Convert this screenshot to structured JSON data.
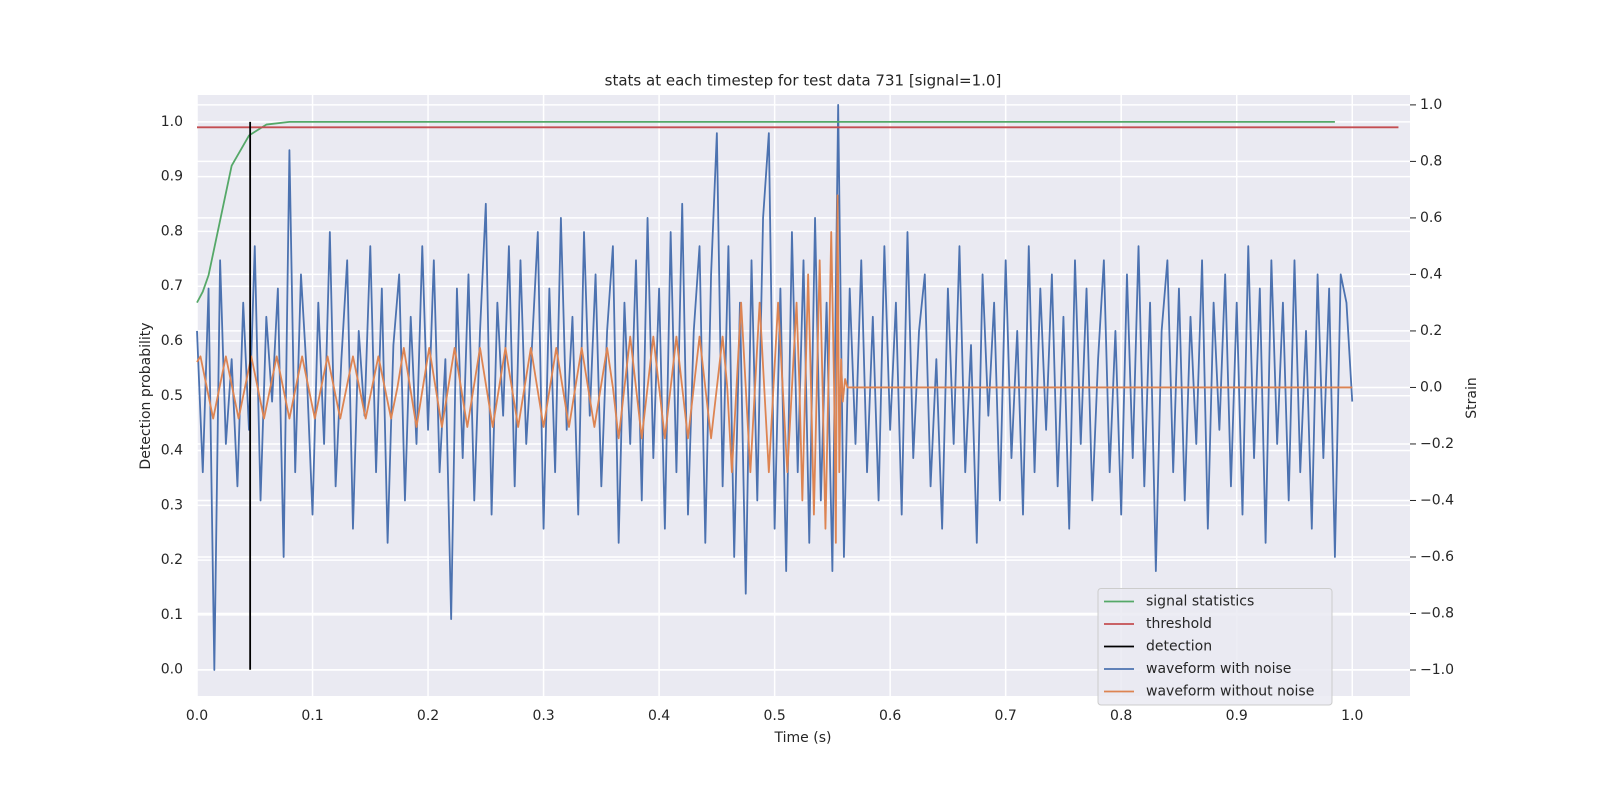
{
  "chart_data": {
    "type": "line",
    "title": "stats at each timestep for test data 731 [signal=1.0]",
    "xlabel": "Time (s)",
    "ylabel": "Detection probability",
    "y2label": "Strain",
    "xlim": [
      0,
      1.05
    ],
    "ylim": [
      -0.048,
      1.049
    ],
    "y2lim": [
      -1.092,
      1.035
    ],
    "xticks": [
      {
        "value": 0,
        "label": "0.0"
      },
      0.1,
      0.2,
      0.3,
      0.4,
      0.5,
      0.6,
      0.7,
      0.8,
      0.9,
      {
        "value": 1,
        "label": "1.0"
      }
    ],
    "yticks": [
      {
        "value": 0,
        "label": "0.0"
      },
      0.1,
      0.2,
      0.3,
      0.4,
      0.5,
      0.6,
      0.7,
      0.8,
      0.9,
      {
        "value": 1,
        "label": "1.0"
      }
    ],
    "y2ticks": [
      {
        "value": -1,
        "label": "−1.0"
      },
      {
        "value": -0.8,
        "label": "−0.8"
      },
      {
        "value": -0.6,
        "label": "−0.6"
      },
      {
        "value": -0.4,
        "label": "−0.4"
      },
      {
        "value": -0.2,
        "label": "−0.2"
      },
      {
        "value": 0,
        "label": "0.0"
      },
      0.2,
      0.4,
      0.6,
      0.8,
      {
        "value": 1,
        "label": "1.0"
      }
    ],
    "grid": true,
    "legend": "lower right",
    "series": [
      {
        "name": "signal statistics",
        "color": "#55a868",
        "x": [
          0,
          0.005,
          0.01,
          0.02,
          0.03,
          0.045,
          0.06,
          0.08,
          0.2,
          0.4,
          0.6,
          0.8,
          0.985
        ],
        "values": [
          0.67,
          0.69,
          0.72,
          0.82,
          0.92,
          0.975,
          0.995,
          1.0,
          1.0,
          1.0,
          1.0,
          1.0,
          1.0
        ]
      },
      {
        "name": "threshold",
        "color": "#c44e52",
        "x": [
          0,
          1.04
        ],
        "values": [
          0.99,
          0.99
        ]
      },
      {
        "name": "detection",
        "color": "#000000",
        "x": [
          0.046,
          0.046
        ],
        "values": [
          0,
          1
        ]
      },
      {
        "name": "waveform with noise",
        "color": "#4c72b0",
        "axis": "y2",
        "x": [
          0,
          0.005,
          0.01,
          0.015,
          0.02,
          0.025,
          0.03,
          0.035,
          0.04,
          0.045,
          0.05,
          0.055,
          0.06,
          0.065,
          0.07,
          0.075,
          0.08,
          0.085,
          0.09,
          0.095,
          0.1,
          0.105,
          0.11,
          0.115,
          0.12,
          0.125,
          0.13,
          0.135,
          0.14,
          0.145,
          0.15,
          0.155,
          0.16,
          0.165,
          0.17,
          0.175,
          0.18,
          0.185,
          0.19,
          0.195,
          0.2,
          0.205,
          0.21,
          0.215,
          0.22,
          0.225,
          0.23,
          0.235,
          0.24,
          0.245,
          0.25,
          0.255,
          0.26,
          0.265,
          0.27,
          0.275,
          0.28,
          0.285,
          0.29,
          0.295,
          0.3,
          0.305,
          0.31,
          0.315,
          0.32,
          0.325,
          0.33,
          0.335,
          0.34,
          0.345,
          0.35,
          0.355,
          0.36,
          0.365,
          0.37,
          0.375,
          0.38,
          0.385,
          0.39,
          0.395,
          0.4,
          0.405,
          0.41,
          0.415,
          0.42,
          0.425,
          0.43,
          0.435,
          0.44,
          0.445,
          0.45,
          0.455,
          0.46,
          0.465,
          0.47,
          0.475,
          0.48,
          0.485,
          0.49,
          0.495,
          0.5,
          0.505,
          0.51,
          0.515,
          0.52,
          0.525,
          0.53,
          0.535,
          0.54,
          0.545,
          0.55,
          0.555,
          0.56,
          0.565,
          0.57,
          0.575,
          0.58,
          0.585,
          0.59,
          0.595,
          0.6,
          0.605,
          0.61,
          0.615,
          0.62,
          0.625,
          0.63,
          0.635,
          0.64,
          0.645,
          0.65,
          0.655,
          0.66,
          0.665,
          0.67,
          0.675,
          0.68,
          0.685,
          0.69,
          0.695,
          0.7,
          0.705,
          0.71,
          0.715,
          0.72,
          0.725,
          0.73,
          0.735,
          0.74,
          0.745,
          0.75,
          0.755,
          0.76,
          0.765,
          0.77,
          0.775,
          0.78,
          0.785,
          0.79,
          0.795,
          0.8,
          0.805,
          0.81,
          0.815,
          0.82,
          0.825,
          0.83,
          0.835,
          0.84,
          0.845,
          0.85,
          0.855,
          0.86,
          0.865,
          0.87,
          0.875,
          0.88,
          0.885,
          0.89,
          0.895,
          0.9,
          0.905,
          0.91,
          0.915,
          0.92,
          0.925,
          0.93,
          0.935,
          0.94,
          0.945,
          0.95,
          0.955,
          0.96,
          0.965,
          0.97,
          0.975,
          0.98,
          0.985,
          0.99,
          0.995,
          1.0
        ],
        "values": [
          0.2,
          -0.3,
          0.35,
          -1.0,
          0.45,
          -0.2,
          0.1,
          -0.35,
          0.3,
          -0.15,
          0.5,
          -0.4,
          0.25,
          -0.05,
          0.35,
          -0.6,
          0.84,
          -0.3,
          0.4,
          0.05,
          -0.45,
          0.3,
          -0.2,
          0.55,
          -0.35,
          0.1,
          0.45,
          -0.5,
          0.2,
          -0.1,
          0.5,
          -0.3,
          0.35,
          -0.55,
          0.15,
          0.4,
          -0.4,
          0.25,
          -0.2,
          0.5,
          -0.15,
          0.45,
          -0.3,
          0.1,
          -0.82,
          0.35,
          -0.25,
          0.4,
          -0.4,
          0.2,
          0.65,
          -0.45,
          0.3,
          -0.1,
          0.5,
          -0.35,
          0.45,
          -0.2,
          0.15,
          0.55,
          -0.5,
          0.35,
          -0.3,
          0.6,
          -0.15,
          0.25,
          -0.45,
          0.55,
          -0.1,
          0.4,
          -0.35,
          0.2,
          0.5,
          -0.55,
          0.3,
          -0.2,
          0.45,
          -0.4,
          0.6,
          -0.25,
          0.35,
          -0.5,
          0.55,
          -0.3,
          0.65,
          -0.45,
          0.2,
          0.5,
          -0.55,
          0.4,
          0.9,
          -0.35,
          0.5,
          -0.6,
          0.3,
          -0.73,
          0.45,
          -0.4,
          0.6,
          0.9,
          -0.5,
          0.35,
          -0.65,
          0.55,
          -0.3,
          0.45,
          -0.55,
          0.6,
          -0.4,
          0.3,
          -0.65,
          1.0,
          -0.6,
          0.35,
          -0.2,
          0.45,
          -0.3,
          0.25,
          -0.4,
          0.5,
          -0.15,
          0.3,
          -0.45,
          0.55,
          -0.25,
          0.2,
          0.4,
          -0.35,
          0.1,
          -0.5,
          0.35,
          -0.2,
          0.5,
          -0.3,
          0.15,
          -0.55,
          0.4,
          -0.1,
          0.3,
          -0.4,
          0.45,
          -0.25,
          0.2,
          -0.45,
          0.5,
          -0.3,
          0.35,
          -0.15,
          0.4,
          -0.35,
          0.25,
          -0.5,
          0.45,
          -0.2,
          0.35,
          -0.4,
          0.1,
          0.45,
          -0.3,
          0.2,
          -0.45,
          0.4,
          -0.25,
          0.5,
          -0.35,
          0.3,
          -0.65,
          0.2,
          0.45,
          -0.3,
          0.35,
          -0.4,
          0.25,
          -0.2,
          0.45,
          -0.5,
          0.3,
          -0.15,
          0.4,
          -0.35,
          0.3,
          -0.45,
          0.5,
          -0.25,
          0.35,
          -0.55,
          0.45,
          -0.2,
          0.3,
          -0.4,
          0.45,
          -0.3,
          0.2,
          -0.5,
          0.4,
          -0.25,
          0.35,
          -0.6,
          0.4,
          0.3,
          -0.05
        ]
      },
      {
        "name": "waveform without noise",
        "color": "#dd8452",
        "axis": "y2",
        "x": [
          0,
          0.003,
          0.0085,
          0.014,
          0.0195,
          0.025,
          0.0305,
          0.036,
          0.0415,
          0.047,
          0.0525,
          0.058,
          0.0635,
          0.069,
          0.0745,
          0.08,
          0.0855,
          0.091,
          0.0965,
          0.102,
          0.1075,
          0.113,
          0.1185,
          0.124,
          0.1295,
          0.135,
          0.1405,
          0.146,
          0.1515,
          0.157,
          0.1625,
          0.168,
          0.1735,
          0.179,
          0.1845,
          0.19,
          0.1955,
          0.201,
          0.2065,
          0.212,
          0.2175,
          0.223,
          0.2285,
          0.234,
          0.2395,
          0.245,
          0.2505,
          0.256,
          0.2615,
          0.267,
          0.2725,
          0.278,
          0.2835,
          0.289,
          0.2945,
          0.3,
          0.3055,
          0.311,
          0.3165,
          0.322,
          0.3275,
          0.333,
          0.3385,
          0.344,
          0.3495,
          0.355,
          0.36,
          0.365,
          0.37,
          0.375,
          0.38,
          0.385,
          0.39,
          0.395,
          0.4,
          0.405,
          0.41,
          0.415,
          0.42,
          0.425,
          0.43,
          0.435,
          0.44,
          0.445,
          0.45,
          0.455,
          0.459,
          0.463,
          0.467,
          0.471,
          0.475,
          0.479,
          0.483,
          0.487,
          0.491,
          0.495,
          0.499,
          0.503,
          0.507,
          0.511,
          0.515,
          0.519,
          0.5215,
          0.524,
          0.5265,
          0.529,
          0.5315,
          0.534,
          0.5365,
          0.539,
          0.5415,
          0.544,
          0.5465,
          0.549,
          0.5515,
          0.553,
          0.5545,
          0.556,
          0.5575,
          0.559,
          0.561,
          0.563,
          1.0
        ],
        "values": [
          0.09,
          0.11,
          0,
          -0.11,
          0,
          0.11,
          0,
          -0.11,
          0,
          0.11,
          0,
          -0.11,
          0,
          0.11,
          0,
          -0.11,
          0,
          0.11,
          0,
          -0.11,
          0,
          0.11,
          0,
          -0.11,
          0,
          0.11,
          0,
          -0.11,
          0,
          0.11,
          0,
          -0.11,
          0,
          0.14,
          0,
          -0.14,
          0,
          0.14,
          0,
          -0.14,
          0,
          0.14,
          0,
          -0.14,
          0,
          0.14,
          0,
          -0.14,
          0,
          0.14,
          0,
          -0.14,
          0,
          0.14,
          0,
          -0.14,
          0,
          0.14,
          0,
          -0.14,
          0,
          0.14,
          0,
          -0.14,
          0,
          0.14,
          0,
          -0.18,
          0,
          0.18,
          0,
          -0.18,
          0,
          0.18,
          0,
          -0.18,
          0,
          0.18,
          0,
          -0.18,
          0,
          0.18,
          0,
          -0.18,
          0,
          0.18,
          0,
          -0.3,
          0,
          0.3,
          0,
          -0.3,
          0,
          0.3,
          0,
          -0.3,
          0,
          0.3,
          0,
          -0.3,
          0,
          0.3,
          0,
          -0.4,
          0,
          0.4,
          0,
          -0.45,
          0,
          0.45,
          0,
          -0.5,
          0,
          0.55,
          0,
          -0.55,
          0.68,
          -0.3,
          0.1,
          -0.05,
          0.03,
          0,
          0
        ]
      }
    ]
  }
}
